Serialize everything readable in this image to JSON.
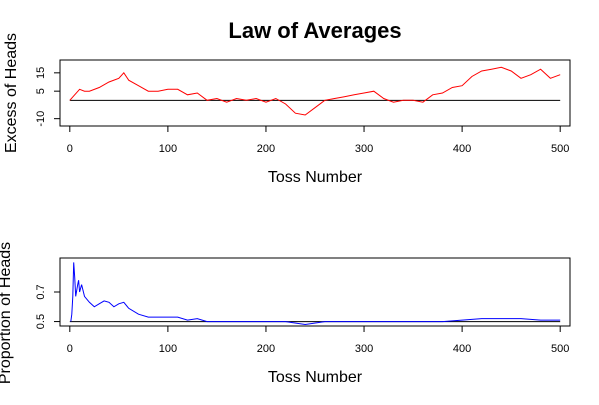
{
  "title": "Law of Averages",
  "chart_data": [
    {
      "type": "line",
      "ylabel": "Excess of Heads",
      "xlabel": "Toss Number",
      "xlim": [
        -10,
        510
      ],
      "ylim": [
        -14,
        22
      ],
      "xticks": [
        0,
        100,
        200,
        300,
        400,
        500
      ],
      "yticks": [
        -10,
        5,
        15
      ],
      "reference_line": 0,
      "series": [
        {
          "color": "#ff0000",
          "x": [
            0,
            5,
            10,
            15,
            20,
            30,
            40,
            50,
            55,
            60,
            70,
            80,
            90,
            100,
            110,
            120,
            130,
            140,
            150,
            160,
            170,
            180,
            190,
            200,
            210,
            220,
            230,
            240,
            250,
            260,
            270,
            280,
            290,
            300,
            310,
            320,
            330,
            340,
            350,
            360,
            370,
            380,
            390,
            400,
            410,
            420,
            430,
            440,
            450,
            460,
            470,
            480,
            490,
            500
          ],
          "y": [
            0,
            3,
            6,
            5,
            5,
            7,
            10,
            12,
            15,
            11,
            8,
            5,
            5,
            6,
            6,
            3,
            4,
            0,
            1,
            -1,
            1,
            0,
            1,
            -1,
            1,
            -2,
            -7,
            -8,
            -4,
            0,
            1,
            2,
            3,
            4,
            5,
            1,
            -1,
            0,
            0,
            -1,
            3,
            4,
            7,
            8,
            13,
            16,
            17,
            18,
            16,
            12,
            14,
            17,
            12,
            14
          ]
        }
      ]
    },
    {
      "type": "line",
      "ylabel": "Proportion of Heads",
      "xlabel": "Toss Number",
      "xlim": [
        -10,
        510
      ],
      "ylim": [
        0.47,
        0.93
      ],
      "xticks": [
        0,
        100,
        200,
        300,
        400,
        500
      ],
      "yticks": [
        0.5,
        0.7
      ],
      "reference_line": 0.5,
      "series": [
        {
          "color": "#0000ff",
          "x": [
            1,
            2,
            3,
            4,
            5,
            6,
            7,
            8,
            9,
            10,
            12,
            15,
            20,
            25,
            30,
            35,
            40,
            45,
            50,
            55,
            60,
            70,
            80,
            90,
            100,
            110,
            120,
            130,
            140,
            150,
            160,
            170,
            180,
            190,
            200,
            220,
            240,
            260,
            280,
            300,
            320,
            340,
            360,
            380,
            400,
            420,
            440,
            460,
            480,
            500
          ],
          "y": [
            0.5,
            0.55,
            0.67,
            0.9,
            0.8,
            0.67,
            0.71,
            0.75,
            0.78,
            0.7,
            0.75,
            0.67,
            0.63,
            0.6,
            0.62,
            0.64,
            0.63,
            0.6,
            0.62,
            0.63,
            0.59,
            0.55,
            0.53,
            0.53,
            0.53,
            0.53,
            0.51,
            0.52,
            0.5,
            0.5,
            0.5,
            0.5,
            0.5,
            0.5,
            0.5,
            0.5,
            0.48,
            0.5,
            0.5,
            0.5,
            0.5,
            0.5,
            0.5,
            0.5,
            0.51,
            0.52,
            0.52,
            0.52,
            0.51,
            0.51
          ]
        }
      ]
    }
  ]
}
